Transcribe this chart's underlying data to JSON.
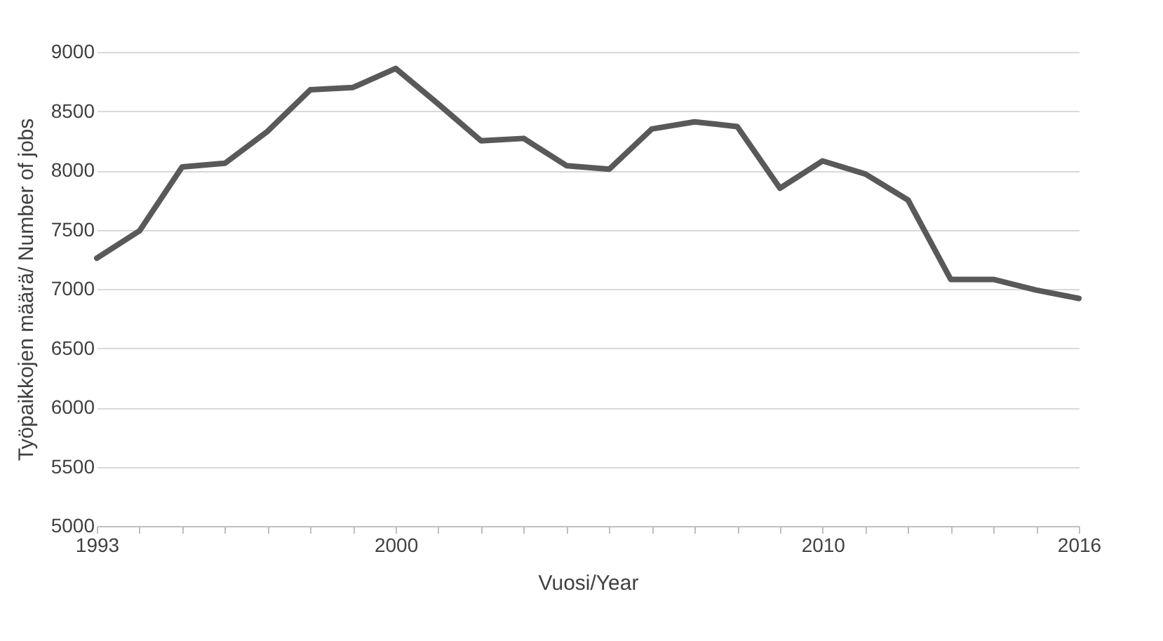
{
  "chart_data": {
    "type": "line",
    "xlabel": "Vuosi/Year",
    "ylabel": "Työpaikkojen määrä/ Number of jobs",
    "x": [
      1993,
      1994,
      1995,
      1996,
      1997,
      1998,
      1999,
      2000,
      2001,
      2002,
      2003,
      2004,
      2005,
      2006,
      2007,
      2008,
      2009,
      2010,
      2011,
      2012,
      2013,
      2014,
      2015,
      2016
    ],
    "series": [
      {
        "color": "#595959",
        "values": [
          7260,
          7490,
          8030,
          8060,
          8330,
          8680,
          8700,
          8860,
          8560,
          8250,
          8270,
          8040,
          8010,
          8350,
          8410,
          8370,
          7850,
          8080,
          7970,
          7750,
          7080,
          7080,
          6990,
          6920
        ]
      }
    ],
    "xlim": [
      1993,
      2016
    ],
    "xticks": [
      1993,
      {
        "value": 1994,
        "label": null
      },
      {
        "value": 1995,
        "label": null
      },
      {
        "value": 1996,
        "label": null
      },
      {
        "value": 1997,
        "label": null
      },
      {
        "value": 1998,
        "label": null
      },
      {
        "value": 1999,
        "label": null
      },
      2000,
      {
        "value": 2001,
        "label": null
      },
      {
        "value": 2002,
        "label": null
      },
      {
        "value": 2003,
        "label": null
      },
      {
        "value": 2004,
        "label": null
      },
      {
        "value": 2005,
        "label": null
      },
      {
        "value": 2006,
        "label": null
      },
      {
        "value": 2007,
        "label": null
      },
      {
        "value": 2008,
        "label": null
      },
      {
        "value": 2009,
        "label": null
      },
      2010,
      {
        "value": 2011,
        "label": null
      },
      {
        "value": 2012,
        "label": null
      },
      {
        "value": 2013,
        "label": null
      },
      {
        "value": 2014,
        "label": null
      },
      {
        "value": 2015,
        "label": null
      },
      2016
    ],
    "ylim": [
      5000,
      9000
    ],
    "yticks": [
      5000,
      5500,
      6000,
      6500,
      7000,
      7500,
      8000,
      8500,
      9000
    ],
    "grid": "y",
    "marker": "none",
    "line_style": "solid"
  }
}
